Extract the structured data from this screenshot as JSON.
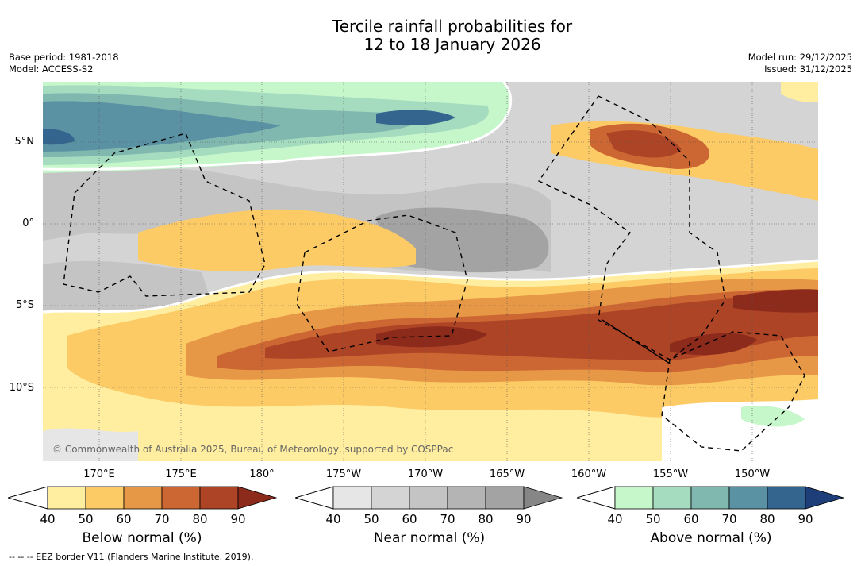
{
  "title_line1": "Tercile rainfall probabilities for",
  "title_line2": "12 to 18 January 2026",
  "base_period": "Base period: 1981-2018",
  "model": "Model: ACCESS-S2",
  "model_run": "Model run: 29/12/2025",
  "issued": "Issued: 31/12/2025",
  "lat_labels": [
    "5°N",
    "0°",
    "5°S",
    "10°S"
  ],
  "lon_labels": [
    "170°E",
    "175°E",
    "180°",
    "175°W",
    "170°W",
    "165°W",
    "160°W",
    "155°W",
    "150°W"
  ],
  "copyright": "© Commonwealth of Australia 2025, Bureau of Meteorology, supported by COSPPac",
  "colorbars": [
    {
      "name": "below",
      "label": "Below normal (%)",
      "ticks": [
        "40",
        "50",
        "60",
        "70",
        "80",
        "90"
      ],
      "colors": [
        "#ffeea0",
        "#fdcb66",
        "#e79846",
        "#cc6632",
        "#ad4425",
        "#8c2a1b"
      ]
    },
    {
      "name": "near",
      "label": "Near normal (%)",
      "ticks": [
        "40",
        "50",
        "60",
        "70",
        "80",
        "90"
      ],
      "colors": [
        "#e6e6e6",
        "#d4d4d4",
        "#c4c4c4",
        "#b4b4b4",
        "#a3a3a3",
        "#868686"
      ]
    },
    {
      "name": "above",
      "label": "Above normal (%)",
      "ticks": [
        "40",
        "50",
        "60",
        "70",
        "80",
        "90"
      ],
      "colors": [
        "#c6f7cb",
        "#a5dbbf",
        "#80b8b0",
        "#5a92a3",
        "#33658e",
        "#1d3e78"
      ]
    }
  ],
  "footnote": "--  --  -- EEZ border V11 (Flanders Marine Institute, 2019)."
}
